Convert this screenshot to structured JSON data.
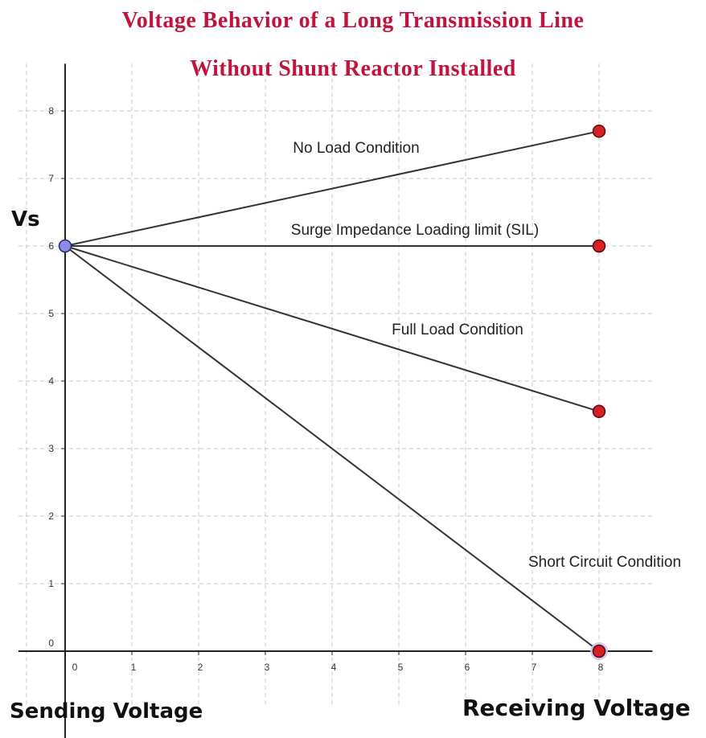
{
  "chart_data": {
    "type": "line",
    "title": "Voltage Behavior of a Long Transmission Line",
    "subtitle": "Without Shunt Reactor Installed",
    "ylabel": "Vs",
    "xlabel_left": "Sending Voltage",
    "xlabel_right": "Receiving Voltage",
    "xlim": [
      -0.7,
      8.8
    ],
    "ylim": [
      -0.8,
      8.7
    ],
    "x_ticks": [
      0,
      1,
      2,
      3,
      4,
      5,
      6,
      7,
      8
    ],
    "y_ticks": [
      0,
      1,
      2,
      3,
      4,
      5,
      6,
      7,
      8
    ],
    "grid": true,
    "start_point": {
      "x": 0,
      "y": 6
    },
    "series": [
      {
        "name": "No Load Condition",
        "x": [
          0,
          8
        ],
        "y": [
          6,
          7.7
        ]
      },
      {
        "name": "Surge Impedance Loading limit (SIL)",
        "x": [
          0,
          8
        ],
        "y": [
          6,
          6
        ]
      },
      {
        "name": "Full Load Condition",
        "x": [
          0,
          8
        ],
        "y": [
          6,
          3.55
        ]
      },
      {
        "name": "Short Circuit Condition",
        "x": [
          0,
          8
        ],
        "y": [
          6,
          0
        ]
      }
    ]
  },
  "colors": {
    "title": "#c0143c",
    "line": "#333333",
    "grid": "#c8c8c8",
    "end_point": "#d42026",
    "start_point": "#8c8ce8"
  }
}
